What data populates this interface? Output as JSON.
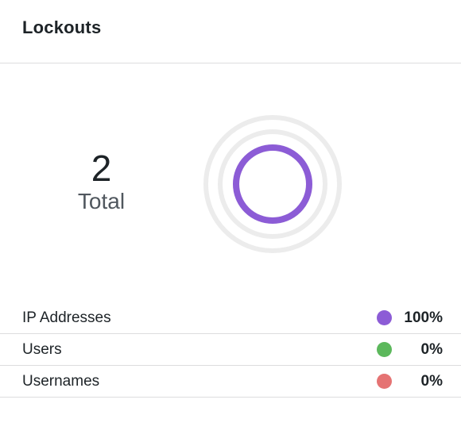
{
  "header": {
    "title": "Lockouts"
  },
  "summary": {
    "total_value": "2",
    "total_label": "Total"
  },
  "colors": {
    "ip": "#8c5cd6",
    "users": "#5cb85c",
    "usernames": "#e57373",
    "track": "#ececec"
  },
  "legend": [
    {
      "label": "IP Addresses",
      "percent": "100%",
      "color": "#8c5cd6",
      "fraction": 1.0
    },
    {
      "label": "Users",
      "percent": "0%",
      "color": "#5cb85c",
      "fraction": 0.0
    },
    {
      "label": "Usernames",
      "percent": "0%",
      "color": "#e57373",
      "fraction": 0.0
    }
  ]
}
